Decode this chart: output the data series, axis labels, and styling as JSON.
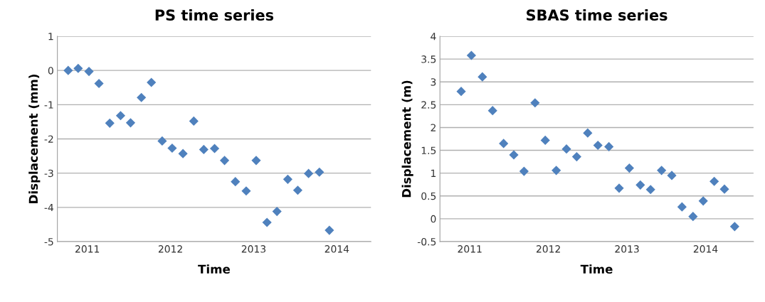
{
  "chart_data": [
    {
      "type": "scatter",
      "title": "PS time series",
      "xlabel": "Time",
      "ylabel": "Displacement (mm)",
      "marker": "diamond",
      "grid": "y",
      "xlim": [
        2010.64,
        2014.41
      ],
      "xticks": [
        2011,
        2012,
        2013,
        2014
      ],
      "ylim": [
        -5,
        1
      ],
      "yticks": [
        -5,
        -4,
        -3,
        -2,
        -1,
        0,
        1
      ],
      "series": [
        {
          "color": "#4f81bd",
          "x": [
            2010.77,
            2010.89,
            2011.02,
            2011.14,
            2011.27,
            2011.4,
            2011.52,
            2011.65,
            2011.77,
            2011.9,
            2012.02,
            2012.15,
            2012.28,
            2012.4,
            2012.53,
            2012.65,
            2012.78,
            2012.91,
            2013.03,
            2013.16,
            2013.28,
            2013.41,
            2013.53,
            2013.66,
            2013.79,
            2013.91
          ],
          "values": [
            0,
            0.06,
            -0.03,
            -0.38,
            -1.54,
            -1.32,
            -1.53,
            -0.79,
            -0.35,
            -2.06,
            -2.27,
            -2.43,
            -1.48,
            -2.31,
            -2.28,
            -2.63,
            -3.25,
            -3.52,
            -2.63,
            -4.44,
            -4.12,
            -3.18,
            -3.5,
            -3.01,
            -2.97,
            -4.67
          ]
        }
      ]
    },
    {
      "type": "scatter",
      "title": "SBAS time series",
      "xlabel": "Time",
      "ylabel": "Displacement (m)",
      "marker": "diamond",
      "grid": "y",
      "xlim": [
        2010.62,
        2014.61
      ],
      "xticks": [
        2011,
        2012,
        2013,
        2014
      ],
      "ylim": [
        -0.5,
        4
      ],
      "yticks": [
        -0.5,
        0,
        0.5,
        1,
        1.5,
        2,
        2.5,
        3,
        3.5,
        4
      ],
      "series": [
        {
          "color": "#4f81bd",
          "x": [
            2010.89,
            2011.02,
            2011.16,
            2011.29,
            2011.43,
            2011.56,
            2011.69,
            2011.83,
            2011.96,
            2012.1,
            2012.23,
            2012.36,
            2012.5,
            2012.63,
            2012.77,
            2012.9,
            2013.03,
            2013.17,
            2013.3,
            2013.44,
            2013.57,
            2013.7,
            2013.84,
            2013.97,
            2014.11,
            2014.24,
            2014.37
          ],
          "values": [
            2.79,
            3.58,
            3.11,
            2.37,
            1.65,
            1.4,
            1.04,
            2.54,
            1.72,
            1.06,
            1.53,
            1.36,
            1.88,
            1.61,
            1.58,
            0.67,
            1.11,
            0.74,
            0.64,
            1.06,
            0.95,
            0.26,
            0.05,
            0.39,
            0.82,
            0.65,
            -0.17
          ]
        }
      ]
    }
  ]
}
